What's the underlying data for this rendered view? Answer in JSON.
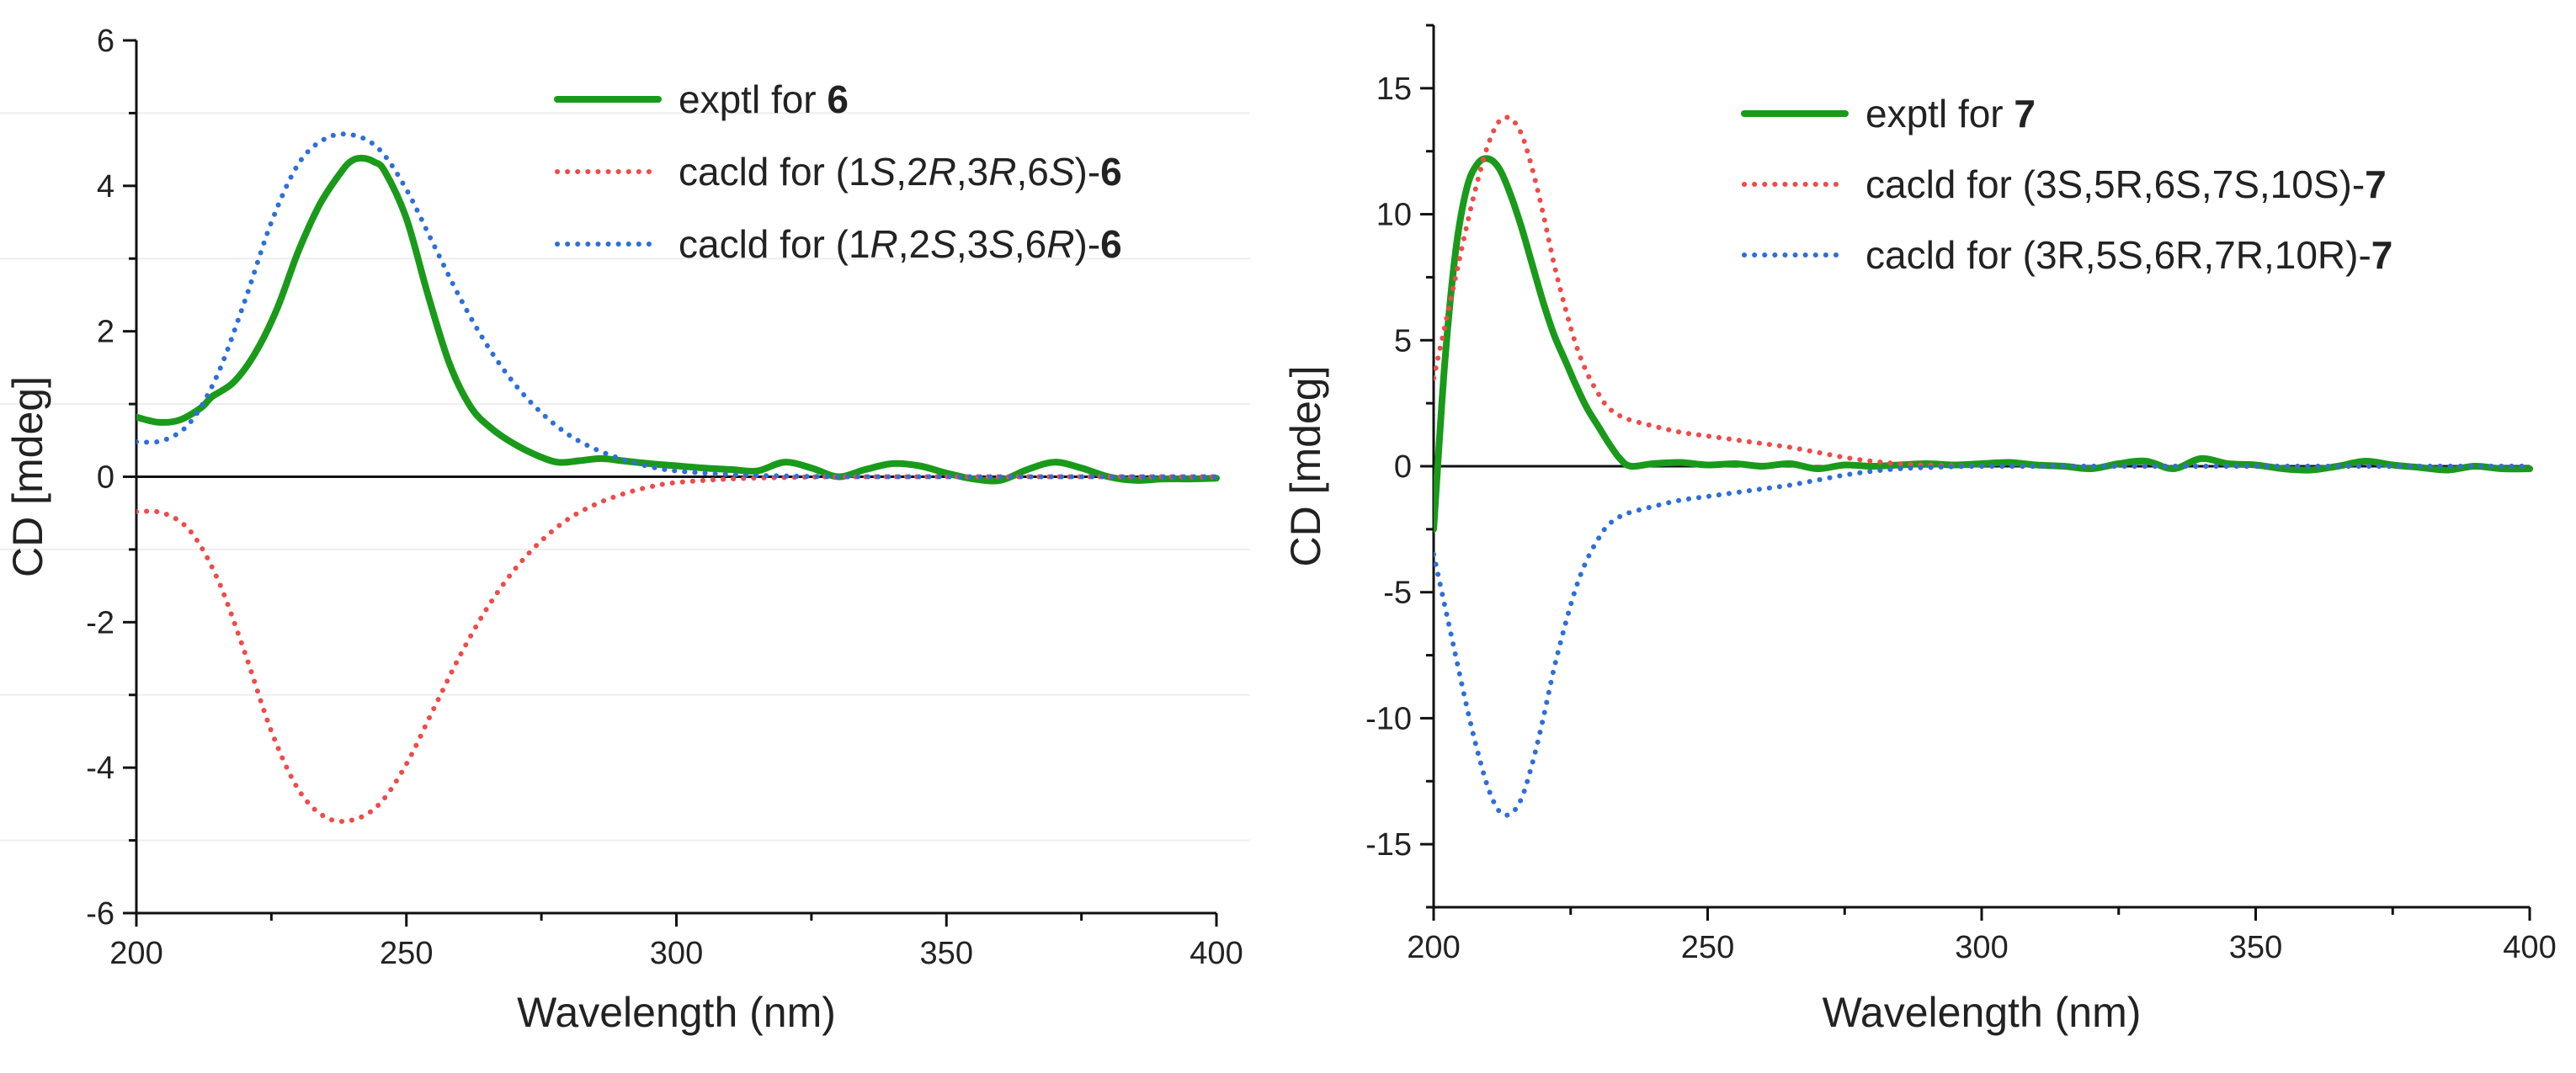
{
  "colors": {
    "exptl": "#1a9a1a",
    "red": "#f04a4a",
    "blue": "#2e6fd8",
    "axis": "#111111"
  },
  "chart_data": [
    {
      "type": "line",
      "xlabel": "Wavelength (nm)",
      "ylabel": "CD [mdeg]",
      "xlim": [
        200,
        400
      ],
      "ylim": [
        -6,
        6
      ],
      "xticks": [
        200,
        250,
        300,
        350,
        400
      ],
      "yticks": [
        -6,
        -4,
        -2,
        0,
        2,
        4,
        6
      ],
      "xtick_labels": [
        "200",
        "250",
        "300",
        "350",
        "400"
      ],
      "ytick_labels": [
        "-6",
        "-4",
        "-2",
        "0",
        "2",
        "4",
        "6"
      ],
      "legend_placement": "top-right",
      "series": [
        {
          "name": "exptl for 6",
          "legend_parts": [
            {
              "t": "exptl for "
            },
            {
              "t": "6",
              "b": true
            }
          ],
          "color_key": "exptl",
          "style": "solid",
          "x": [
            200,
            204,
            208,
            212,
            214,
            218,
            222,
            226,
            230,
            234,
            238,
            240,
            242,
            244,
            246,
            250,
            254,
            258,
            262,
            266,
            270,
            274,
            278,
            282,
            286,
            290,
            295,
            300,
            305,
            310,
            315,
            320,
            325,
            330,
            335,
            340,
            345,
            350,
            355,
            360,
            365,
            370,
            375,
            380,
            385,
            390,
            395,
            400
          ],
          "y": [
            0.82,
            0.75,
            0.78,
            0.95,
            1.1,
            1.3,
            1.7,
            2.3,
            3.1,
            3.75,
            4.2,
            4.35,
            4.38,
            4.33,
            4.2,
            3.55,
            2.5,
            1.55,
            0.95,
            0.65,
            0.45,
            0.3,
            0.2,
            0.22,
            0.25,
            0.22,
            0.18,
            0.15,
            0.12,
            0.1,
            0.08,
            0.2,
            0.12,
            0.0,
            0.1,
            0.18,
            0.15,
            0.05,
            -0.03,
            -0.05,
            0.1,
            0.2,
            0.12,
            0.0,
            -0.05,
            -0.03,
            -0.03,
            -0.02
          ]
        },
        {
          "name": "cacld for (1S,2R,3R,6S)-6",
          "legend_parts": [
            {
              "t": "cacld for (1"
            },
            {
              "t": "S",
              "i": true
            },
            {
              "t": ",2"
            },
            {
              "t": "R",
              "i": true
            },
            {
              "t": ",3"
            },
            {
              "t": "R",
              "i": true
            },
            {
              "t": ",6"
            },
            {
              "t": "S",
              "i": true
            },
            {
              "t": ")-"
            },
            {
              "t": "6",
              "b": true
            }
          ],
          "color_key": "red",
          "style": "dotted",
          "x": [
            200,
            205,
            210,
            215,
            220,
            225,
            230,
            235,
            240,
            245,
            250,
            255,
            260,
            265,
            270,
            275,
            280,
            285,
            290,
            295,
            300,
            310,
            320,
            330,
            340,
            350,
            360,
            370,
            380,
            390,
            400
          ],
          "y": [
            -0.48,
            -0.5,
            -0.75,
            -1.4,
            -2.4,
            -3.5,
            -4.3,
            -4.68,
            -4.72,
            -4.5,
            -3.95,
            -3.2,
            -2.45,
            -1.8,
            -1.28,
            -0.88,
            -0.58,
            -0.38,
            -0.24,
            -0.14,
            -0.08,
            -0.03,
            -0.01,
            0.0,
            0.0,
            0.0,
            0.0,
            0.0,
            0.0,
            0.0,
            0.0
          ]
        },
        {
          "name": "cacld for (1R,2S,3S,6R)-6",
          "legend_parts": [
            {
              "t": "cacld for (1"
            },
            {
              "t": "R",
              "i": true
            },
            {
              "t": ",2"
            },
            {
              "t": "S",
              "i": true
            },
            {
              "t": ",3"
            },
            {
              "t": "S",
              "i": true
            },
            {
              "t": ",6"
            },
            {
              "t": "R",
              "i": true
            },
            {
              "t": ")-"
            },
            {
              "t": "6",
              "b": true
            }
          ],
          "color_key": "blue",
          "style": "dotted",
          "x": [
            200,
            205,
            210,
            215,
            220,
            225,
            230,
            235,
            240,
            245,
            250,
            255,
            260,
            265,
            270,
            275,
            280,
            285,
            290,
            295,
            300,
            310,
            320,
            330,
            340,
            350,
            360,
            370,
            380,
            390,
            400
          ],
          "y": [
            0.48,
            0.5,
            0.75,
            1.4,
            2.4,
            3.5,
            4.3,
            4.65,
            4.7,
            4.5,
            3.95,
            3.2,
            2.45,
            1.8,
            1.28,
            0.88,
            0.58,
            0.38,
            0.24,
            0.14,
            0.08,
            0.03,
            0.01,
            0.0,
            0.0,
            0.0,
            0.0,
            0.0,
            0.0,
            0.0,
            0.0
          ]
        }
      ]
    },
    {
      "type": "line",
      "xlabel": "Wavelength (nm)",
      "ylabel": "CD [mdeg]",
      "xlim": [
        200,
        400
      ],
      "ylim": [
        -17.5,
        17.5
      ],
      "xticks": [
        200,
        250,
        300,
        350,
        400
      ],
      "yticks": [
        -15,
        -10,
        -5,
        0,
        5,
        10,
        15
      ],
      "xtick_labels": [
        "200",
        "250",
        "300",
        "350",
        "400"
      ],
      "ytick_labels": [
        "-15",
        "-10",
        "-5",
        "0",
        "5",
        "10",
        "15"
      ],
      "legend_placement": "top-right",
      "series": [
        {
          "name": "exptl for 7",
          "legend_parts": [
            {
              "t": "exptl for "
            },
            {
              "t": "7",
              "b": true
            }
          ],
          "color_key": "exptl",
          "style": "solid",
          "x": [
            200,
            202,
            204,
            206,
            208,
            210,
            212,
            214,
            216,
            218,
            220,
            222,
            224,
            226,
            228,
            230,
            232,
            234,
            236,
            240,
            245,
            250,
            255,
            260,
            265,
            270,
            275,
            280,
            285,
            290,
            295,
            300,
            305,
            310,
            315,
            320,
            325,
            330,
            335,
            340,
            345,
            350,
            355,
            360,
            365,
            370,
            375,
            380,
            385,
            390,
            395,
            400
          ],
          "y": [
            -2.5,
            4.0,
            8.5,
            11.0,
            12.0,
            12.2,
            11.8,
            10.8,
            9.5,
            8.0,
            6.5,
            5.2,
            4.2,
            3.2,
            2.3,
            1.6,
            0.9,
            0.3,
            0.0,
            0.1,
            0.15,
            0.05,
            0.1,
            0.0,
            0.1,
            -0.1,
            0.05,
            0.0,
            0.05,
            0.1,
            0.05,
            0.1,
            0.15,
            0.05,
            0.0,
            -0.1,
            0.1,
            0.2,
            -0.1,
            0.3,
            0.1,
            0.05,
            -0.1,
            -0.15,
            0.0,
            0.2,
            0.05,
            -0.05,
            -0.15,
            0.0,
            -0.1,
            -0.1
          ]
        },
        {
          "name": "cacld for (3S,5R,6S,7S,10S)-7",
          "legend_parts": [
            {
              "t": "cacld for (3S,5R,6S,7S,10S)-"
            },
            {
              "t": "7",
              "b": true
            }
          ],
          "color_key": "red",
          "style": "dotted",
          "x": [
            200,
            202,
            204,
            206,
            208,
            210,
            212,
            214,
            216,
            218,
            220,
            222,
            224,
            226,
            228,
            230,
            232,
            235,
            240,
            245,
            250,
            255,
            260,
            265,
            270,
            275,
            280,
            285,
            290,
            300,
            320,
            340,
            360,
            380,
            400
          ],
          "y": [
            3.5,
            5.5,
            7.5,
            9.5,
            11.3,
            12.8,
            13.7,
            13.8,
            13.2,
            11.8,
            10.0,
            8.0,
            6.3,
            4.8,
            3.7,
            2.9,
            2.3,
            1.9,
            1.6,
            1.35,
            1.2,
            1.05,
            0.9,
            0.75,
            0.55,
            0.35,
            0.2,
            0.1,
            0.05,
            0.0,
            0.0,
            0.0,
            0.0,
            0.0,
            0.0
          ]
        },
        {
          "name": "cacld for (3R,5S,6R,7R,10R)-7",
          "legend_parts": [
            {
              "t": "cacld for (3R,5S,6R,7R,10R)-"
            },
            {
              "t": "7",
              "b": true
            }
          ],
          "color_key": "blue",
          "style": "dotted",
          "x": [
            200,
            202,
            204,
            206,
            208,
            210,
            212,
            214,
            216,
            218,
            220,
            222,
            224,
            226,
            228,
            230,
            232,
            235,
            240,
            245,
            250,
            255,
            260,
            265,
            270,
            275,
            280,
            285,
            290,
            300,
            320,
            340,
            360,
            380,
            400
          ],
          "y": [
            -3.5,
            -5.5,
            -7.5,
            -9.5,
            -11.3,
            -12.8,
            -13.7,
            -13.8,
            -13.2,
            -11.8,
            -10.0,
            -8.0,
            -6.3,
            -4.8,
            -3.7,
            -2.9,
            -2.3,
            -1.9,
            -1.6,
            -1.35,
            -1.2,
            -1.05,
            -0.9,
            -0.75,
            -0.55,
            -0.35,
            -0.2,
            -0.1,
            -0.05,
            0.0,
            0.0,
            0.0,
            0.0,
            0.0,
            0.0
          ]
        }
      ]
    }
  ]
}
